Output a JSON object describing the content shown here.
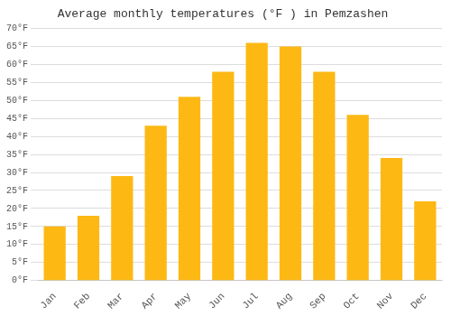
{
  "chart_data": {
    "type": "bar",
    "title": "Average monthly temperatures (°F ) in Pemzashen",
    "categories": [
      "Jan",
      "Feb",
      "Mar",
      "Apr",
      "May",
      "Jun",
      "Jul",
      "Aug",
      "Sep",
      "Oct",
      "Nov",
      "Dec"
    ],
    "values": [
      15,
      18,
      29,
      43,
      51,
      58,
      66,
      65,
      58,
      46,
      34,
      22
    ],
    "color": "#FDB814",
    "ylim": [
      0,
      70
    ],
    "yticks": [
      {
        "value": 0,
        "label": "0°F"
      },
      {
        "value": 5,
        "label": "5°F"
      },
      {
        "value": 10,
        "label": "10°F"
      },
      {
        "value": 15,
        "label": "15°F"
      },
      {
        "value": 20,
        "label": "20°F"
      },
      {
        "value": 25,
        "label": "25°F"
      },
      {
        "value": 30,
        "label": "30°F"
      },
      {
        "value": 35,
        "label": "35°F"
      },
      {
        "value": 40,
        "label": "40°F"
      },
      {
        "value": 45,
        "label": "45°F"
      },
      {
        "value": 50,
        "label": "50°F"
      },
      {
        "value": 55,
        "label": "55°F"
      },
      {
        "value": 60,
        "label": "60°F"
      },
      {
        "value": 65,
        "label": "65°F"
      },
      {
        "value": 70,
        "label": "70°F"
      }
    ],
    "grid": true
  }
}
